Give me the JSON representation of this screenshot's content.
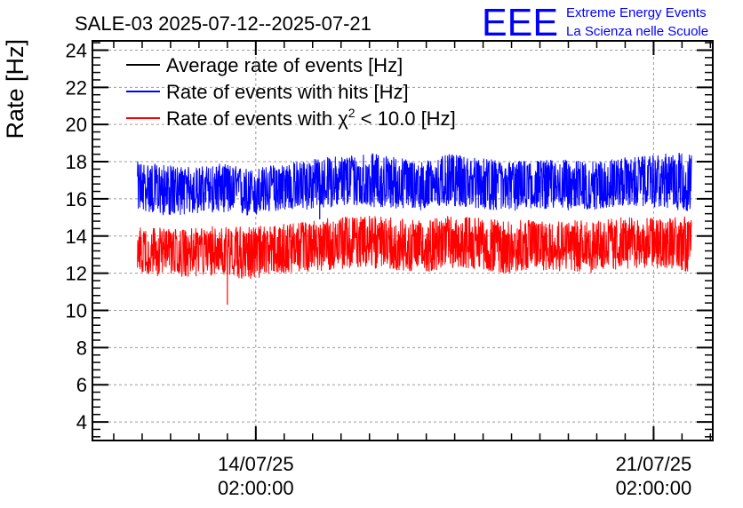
{
  "chart_data": {
    "type": "line",
    "title": "SALE-03 2025-07-12--2025-07-21",
    "ylabel": "Rate [Hz]",
    "xlabel": "",
    "ylim": [
      3,
      24.5
    ],
    "yticks": [
      4,
      6,
      8,
      10,
      12,
      14,
      16,
      18,
      20,
      22,
      24
    ],
    "xlim": [
      "2025-07-11 05:00:00",
      "2025-07-22 03:00:00"
    ],
    "xticks": [
      {
        "date": "14/07/25",
        "time": "02:00:00",
        "x": "2025-07-14 02:00:00"
      },
      {
        "date": "21/07/25",
        "time": "02:00:00",
        "x": "2025-07-21 02:00:00"
      }
    ],
    "grid": true,
    "legend_position": "top-left",
    "legend": [
      {
        "label_pre": "Average rate of events [Hz]",
        "label_sup": "",
        "label_post": "",
        "color": "#000000"
      },
      {
        "label_pre": "Rate of events with hits [Hz]",
        "label_sup": "",
        "label_post": "",
        "color": "#0000ff"
      },
      {
        "label_pre": "Rate of events with χ",
        "label_sup": "2",
        "label_post": " < 10.0 [Hz]",
        "color": "#ff0000"
      }
    ],
    "series": [
      {
        "name": "Rate of events with hits [Hz]",
        "color": "#0000ff",
        "x": [
          "2025-07-12 00:00",
          "2025-07-12 12:00",
          "2025-07-13 00:00",
          "2025-07-13 12:00",
          "2025-07-14 00:00",
          "2025-07-14 12:00",
          "2025-07-15 00:00",
          "2025-07-15 12:00",
          "2025-07-16 00:00",
          "2025-07-16 12:00",
          "2025-07-17 00:00",
          "2025-07-17 12:00",
          "2025-07-18 00:00",
          "2025-07-18 12:00",
          "2025-07-19 00:00",
          "2025-07-19 12:00",
          "2025-07-20 00:00",
          "2025-07-20 12:00",
          "2025-07-21 00:00",
          "2025-07-21 12:00",
          "2025-07-21 18:00"
        ],
        "mean": [
          16.6,
          16.5,
          16.5,
          16.6,
          16.4,
          16.6,
          16.8,
          16.9,
          17.0,
          16.8,
          16.7,
          17.0,
          16.9,
          16.8,
          16.9,
          16.9,
          16.8,
          16.9,
          16.9,
          17.0,
          16.9
        ],
        "min": [
          15.4,
          15.1,
          15.2,
          15.3,
          15.0,
          15.4,
          15.4,
          15.6,
          15.6,
          15.5,
          15.4,
          15.6,
          15.5,
          15.3,
          15.5,
          15.4,
          15.4,
          15.6,
          15.6,
          15.4,
          15.3
        ],
        "max": [
          18.0,
          17.8,
          17.7,
          17.9,
          17.6,
          17.9,
          18.1,
          18.3,
          18.5,
          18.3,
          18.0,
          18.4,
          18.2,
          18.0,
          18.1,
          18.1,
          18.0,
          18.2,
          18.3,
          18.5,
          18.4
        ]
      },
      {
        "name": "Rate of events with χ² < 10.0 [Hz]",
        "color": "#ff0000",
        "x": [
          "2025-07-12 00:00",
          "2025-07-12 12:00",
          "2025-07-13 00:00",
          "2025-07-13 12:00",
          "2025-07-14 00:00",
          "2025-07-14 12:00",
          "2025-07-15 00:00",
          "2025-07-15 12:00",
          "2025-07-16 00:00",
          "2025-07-16 12:00",
          "2025-07-17 00:00",
          "2025-07-17 12:00",
          "2025-07-18 00:00",
          "2025-07-18 12:00",
          "2025-07-19 00:00",
          "2025-07-19 12:00",
          "2025-07-20 00:00",
          "2025-07-20 12:00",
          "2025-07-21 00:00",
          "2025-07-21 12:00",
          "2025-07-21 18:00"
        ],
        "mean": [
          13.3,
          13.2,
          13.2,
          13.3,
          13.2,
          13.3,
          13.5,
          13.6,
          13.7,
          13.6,
          13.5,
          13.7,
          13.6,
          13.5,
          13.6,
          13.6,
          13.5,
          13.6,
          13.6,
          13.7,
          13.6
        ],
        "min": [
          12.0,
          11.8,
          11.8,
          11.9,
          11.6,
          12.0,
          12.1,
          12.2,
          12.3,
          12.2,
          12.0,
          12.3,
          12.2,
          12.0,
          12.2,
          12.1,
          12.0,
          12.2,
          12.3,
          12.2,
          12.0
        ],
        "max": [
          14.6,
          14.4,
          14.4,
          14.6,
          14.5,
          14.6,
          14.8,
          15.0,
          15.1,
          15.0,
          14.8,
          15.1,
          15.0,
          14.8,
          14.9,
          14.9,
          14.8,
          15.0,
          15.0,
          15.1,
          15.0
        ]
      }
    ],
    "annotations": [
      {
        "series": "Rate of events with hits [Hz]",
        "x": "2025-07-15 05:00",
        "y": 14.9
      },
      {
        "series": "Rate of events with χ² < 10.0 [Hz]",
        "x": "2025-07-13 14:00",
        "y": 10.3
      }
    ]
  },
  "logo": {
    "letters": "EEE",
    "line1": "Extreme Energy Events",
    "line2": "La Scienza nelle Scuole",
    "color": "#0000ff"
  }
}
